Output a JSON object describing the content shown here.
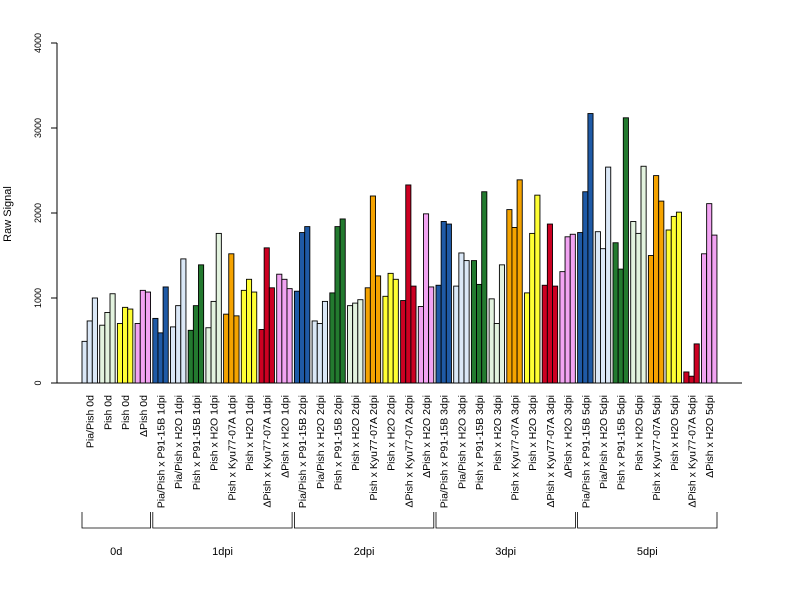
{
  "chart_data": {
    "type": "bar",
    "title": "",
    "xlabel": "",
    "ylabel": "Raw Signal",
    "ylim": [
      0,
      4000
    ],
    "yticks": [
      0,
      1000,
      2000,
      3000,
      4000
    ],
    "grid": false,
    "legend": "none",
    "color_map": {
      "lightblue": "#dbe8f7",
      "lightgreen": "#e3f3df",
      "yellow": "#ffff33",
      "violet": "#f2a3f2",
      "blue": "#1f5aa6",
      "green": "#237a2f",
      "orange": "#f5a300",
      "red": "#cc0022"
    },
    "categories": [
      {
        "label": "Pia/Pish 0d",
        "color": "lightblue",
        "values": [
          490,
          730,
          1000
        ]
      },
      {
        "label": "Pish 0d",
        "color": "lightgreen",
        "values": [
          680,
          830,
          1050
        ]
      },
      {
        "label": "Pish 0d",
        "color": "yellow",
        "values": [
          700,
          890,
          870
        ]
      },
      {
        "label": "ΔPish 0d",
        "color": "violet",
        "values": [
          700,
          1090,
          1070
        ]
      },
      {
        "label": "Pia/Pish x P91-15B 1dpi",
        "color": "blue",
        "values": [
          760,
          590,
          1130
        ]
      },
      {
        "label": "Pia/Pish x H2O 1dpi",
        "color": "lightblue",
        "values": [
          660,
          910,
          1460
        ]
      },
      {
        "label": "Pish x P91-15B 1dpi",
        "color": "green",
        "values": [
          620,
          910,
          1390
        ]
      },
      {
        "label": "Pish x H2O 1dpi",
        "color": "lightgreen",
        "values": [
          650,
          960,
          1760
        ]
      },
      {
        "label": "Pish x Kyu77-07A 1dpi",
        "color": "orange",
        "values": [
          810,
          1520,
          790
        ]
      },
      {
        "label": "Pish x H2O 1dpi",
        "color": "yellow",
        "values": [
          1090,
          1220,
          1070
        ]
      },
      {
        "label": "ΔPish x Kyu77-07A 1dpi",
        "color": "red",
        "values": [
          630,
          1590,
          1120
        ]
      },
      {
        "label": "ΔPish x H2O 1dpi",
        "color": "violet",
        "values": [
          1280,
          1220,
          1110
        ]
      },
      {
        "label": "Pia/Pish x P91-15B 2dpi",
        "color": "blue",
        "values": [
          1080,
          1770,
          1840
        ]
      },
      {
        "label": "Pia/Pish x H2O 2dpi",
        "color": "lightblue",
        "values": [
          730,
          700,
          960
        ]
      },
      {
        "label": "Pish x P91-15B 2dpi",
        "color": "green",
        "values": [
          1060,
          1840,
          1930
        ]
      },
      {
        "label": "Pish x H2O 2dpi",
        "color": "lightgreen",
        "values": [
          910,
          940,
          980
        ]
      },
      {
        "label": "Pish x Kyu77-07A 2dpi",
        "color": "orange",
        "values": [
          1120,
          2200,
          1260
        ]
      },
      {
        "label": "Pish x H2O 2dpi",
        "color": "yellow",
        "values": [
          1020,
          1290,
          1220
        ]
      },
      {
        "label": "ΔPish x Kyu77-07A 2dpi",
        "color": "red",
        "values": [
          970,
          2330,
          1140
        ]
      },
      {
        "label": "ΔPish x H2O 2dpi",
        "color": "violet",
        "values": [
          900,
          1990,
          1130
        ]
      },
      {
        "label": "Pia/Pish x P91-15B 3dpi",
        "color": "blue",
        "values": [
          1150,
          1900,
          1870
        ]
      },
      {
        "label": "Pia/Pish x H2O 3dpi",
        "color": "lightblue",
        "values": [
          1140,
          1530,
          1440
        ]
      },
      {
        "label": "Pish x P91-15B 3dpi",
        "color": "green",
        "values": [
          1440,
          1160,
          2250
        ]
      },
      {
        "label": "Pish x H2O 3dpi",
        "color": "lightgreen",
        "values": [
          990,
          700,
          1390
        ]
      },
      {
        "label": "Pish x Kyu77-07A 3dpi",
        "color": "orange",
        "values": [
          2040,
          1830,
          2390
        ]
      },
      {
        "label": "Pish x H2O 3dpi",
        "color": "yellow",
        "values": [
          1060,
          1760,
          2210
        ]
      },
      {
        "label": "ΔPish x Kyu77-07A 3dpi",
        "color": "red",
        "values": [
          1150,
          1870,
          1140
        ]
      },
      {
        "label": "ΔPish x H2O 3dpi",
        "color": "violet",
        "values": [
          1310,
          1720,
          1750
        ]
      },
      {
        "label": "Pia/Pish x P91-15B 5dpi",
        "color": "blue",
        "values": [
          1770,
          2250,
          3170
        ]
      },
      {
        "label": "Pia/Pish x H2O 5dpi",
        "color": "lightblue",
        "values": [
          1780,
          1580,
          2540
        ]
      },
      {
        "label": "Pish x P91-15B 5dpi",
        "color": "green",
        "values": [
          1650,
          1340,
          3120
        ]
      },
      {
        "label": "Pish x H2O 5dpi",
        "color": "lightgreen",
        "values": [
          1900,
          1760,
          2550
        ]
      },
      {
        "label": "Pish x Kyu77-07A 5dpi",
        "color": "orange",
        "values": [
          1500,
          2440,
          2140
        ]
      },
      {
        "label": "Pish x H2O 5dpi",
        "color": "yellow",
        "values": [
          1800,
          1960,
          2010
        ]
      },
      {
        "label": "ΔPish x Kyu77-07A 5dpi",
        "color": "red",
        "values": [
          130,
          80,
          460
        ]
      },
      {
        "label": "ΔPish x H2O 5dpi",
        "color": "violet",
        "values": [
          1520,
          2110,
          1740
        ]
      }
    ],
    "groups": [
      {
        "label": "0d",
        "first": 0,
        "last": 3
      },
      {
        "label": "1dpi",
        "first": 4,
        "last": 11
      },
      {
        "label": "2dpi",
        "first": 12,
        "last": 19
      },
      {
        "label": "3dpi",
        "first": 20,
        "last": 27
      },
      {
        "label": "5dpi",
        "first": 28,
        "last": 35
      }
    ]
  }
}
